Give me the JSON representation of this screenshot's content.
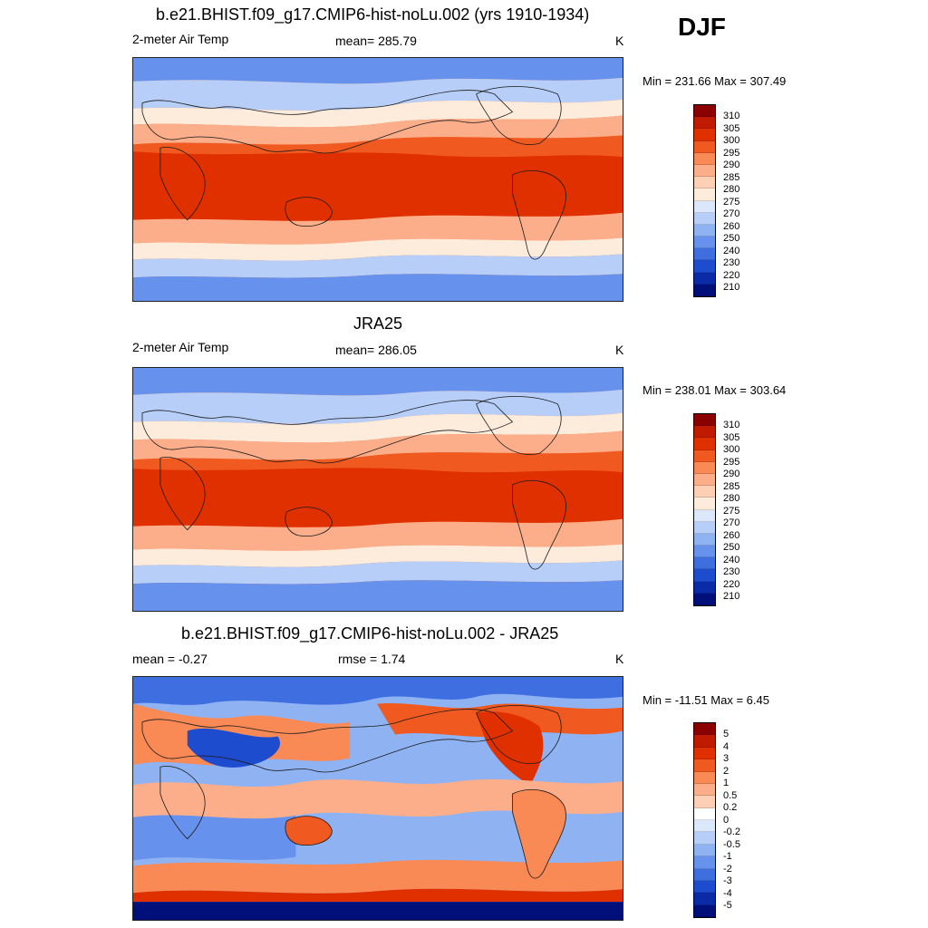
{
  "season": "DJF",
  "panels": [
    {
      "title": "b.e21.BHIST.f09_g17.CMIP6-hist-noLu.002 (yrs 1910-1934)",
      "left_label": "2-meter Air Temp",
      "center_label": "mean= 285.79",
      "right_label": "K",
      "minmax": "Min = 231.66 Max = 307.49",
      "colorbar_ticks": [
        "310",
        "305",
        "300",
        "295",
        "290",
        "285",
        "280",
        "275",
        "270",
        "260",
        "250",
        "240",
        "230",
        "220",
        "210"
      ]
    },
    {
      "title": "JRA25",
      "left_label": "2-meter Air Temp",
      "center_label": "mean= 286.05",
      "right_label": "K",
      "minmax": "Min = 238.01 Max = 303.64",
      "colorbar_ticks": [
        "310",
        "305",
        "300",
        "295",
        "290",
        "285",
        "280",
        "275",
        "270",
        "260",
        "250",
        "240",
        "230",
        "220",
        "210"
      ]
    },
    {
      "title": "b.e21.BHIST.f09_g17.CMIP6-hist-noLu.002 - JRA25",
      "left_label": "mean =  -0.27",
      "center_label": "rmse =   1.74",
      "right_label": "K",
      "minmax": "Min = -11.51 Max =   6.45",
      "colorbar_ticks": [
        "5",
        "4",
        "3",
        "2",
        "1",
        "0.5",
        "0.2",
        "0",
        "-0.2",
        "-0.5",
        "-1",
        "-2",
        "-3",
        "-4",
        "-5"
      ]
    }
  ],
  "colors": {
    "temp_scale": [
      "#8b0000",
      "#c01a00",
      "#e03000",
      "#f05a20",
      "#f98a55",
      "#fcae8b",
      "#fdd0b5",
      "#fdebdc",
      "#dbe7fa",
      "#b7cff8",
      "#8fb2f3",
      "#6691ec",
      "#3f6ee0",
      "#1e4ccf",
      "#0a2aa8",
      "#000f7a"
    ],
    "diff_scale": [
      "#8b0000",
      "#c01a00",
      "#e03000",
      "#f05a20",
      "#f98a55",
      "#fcae8b",
      "#fdd0b5",
      "#ffffff",
      "#dbe7fa",
      "#b7cff8",
      "#8fb2f3",
      "#6691ec",
      "#3f6ee0",
      "#1e4ccf",
      "#0a2aa8",
      "#000f7a"
    ],
    "coastline": "#1a1a1a"
  }
}
